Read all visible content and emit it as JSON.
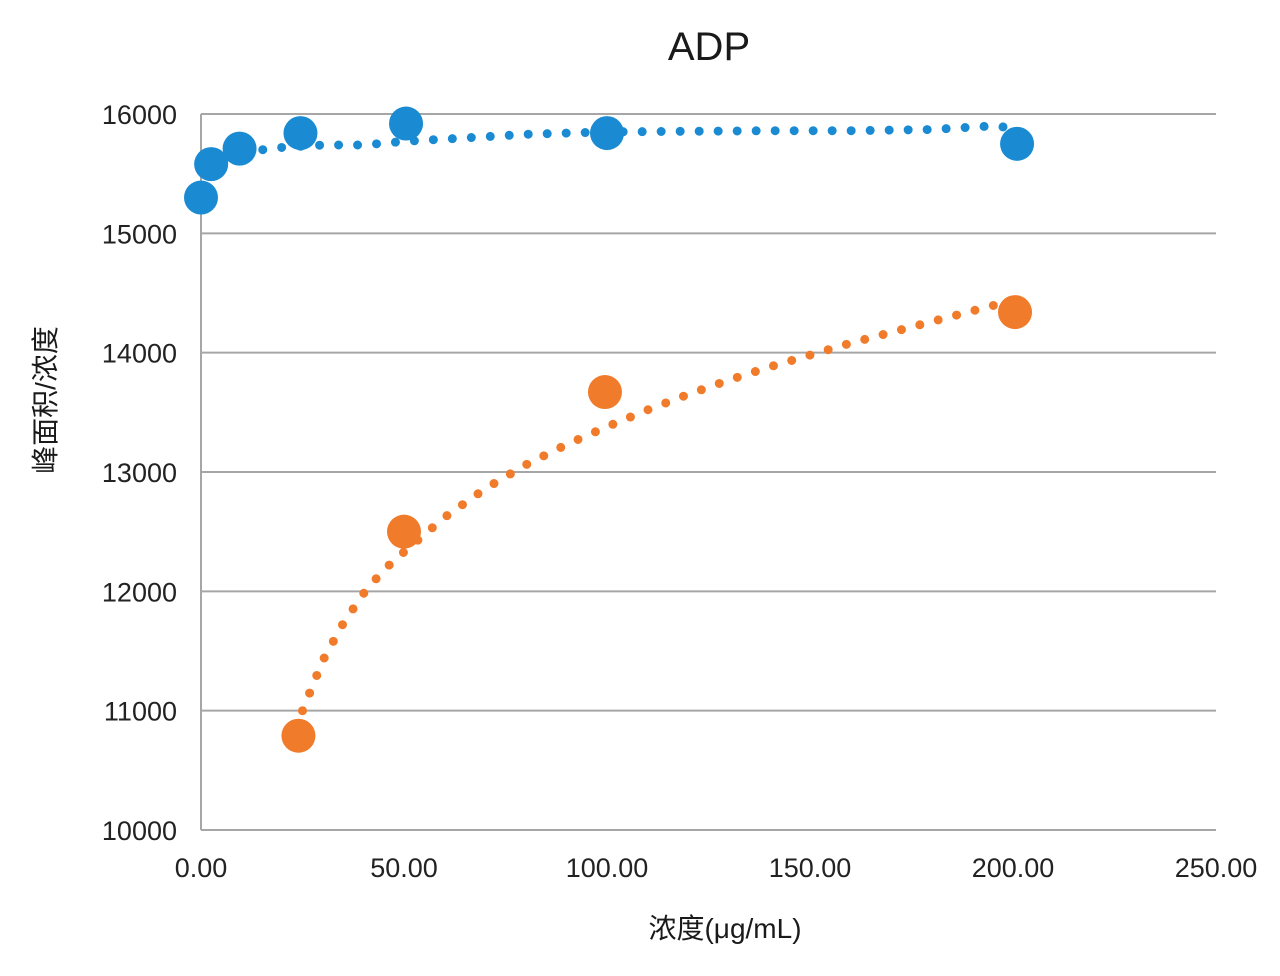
{
  "chart_data": {
    "type": "scatter",
    "title": "ADP",
    "xlabel": "浓度(μg/mL)",
    "ylabel": "峰面积/浓度",
    "xlim": [
      0,
      250
    ],
    "ylim": [
      10000,
      16000
    ],
    "x_ticks": [
      "0.00",
      "50.00",
      "100.00",
      "150.00",
      "200.00",
      "250.00"
    ],
    "y_ticks": [
      "10000",
      "11000",
      "12000",
      "13000",
      "14000",
      "15000",
      "16000"
    ],
    "grid": "horizontal",
    "legend": "none",
    "series": [
      {
        "color": "#1a8bd2",
        "trendline": "dotted",
        "points": [
          {
            "x": 0,
            "y": 15300
          },
          {
            "x": 2.5,
            "y": 15580
          },
          {
            "x": 9.5,
            "y": 15710
          },
          {
            "x": 24.5,
            "y": 15840
          },
          {
            "x": 50.5,
            "y": 15920
          },
          {
            "x": 100,
            "y": 15840
          },
          {
            "x": 201,
            "y": 15750
          }
        ],
        "trend": [
          {
            "x": 2,
            "y": 15560
          },
          {
            "x": 5,
            "y": 15620
          },
          {
            "x": 10,
            "y": 15680
          },
          {
            "x": 20,
            "y": 15720
          },
          {
            "x": 30,
            "y": 15740
          },
          {
            "x": 40,
            "y": 15740
          },
          {
            "x": 50,
            "y": 15770
          },
          {
            "x": 60,
            "y": 15790
          },
          {
            "x": 70,
            "y": 15810
          },
          {
            "x": 80,
            "y": 15830
          },
          {
            "x": 90,
            "y": 15840
          },
          {
            "x": 100,
            "y": 15850
          },
          {
            "x": 120,
            "y": 15855
          },
          {
            "x": 140,
            "y": 15860
          },
          {
            "x": 160,
            "y": 15860
          },
          {
            "x": 180,
            "y": 15870
          },
          {
            "x": 195,
            "y": 15900
          },
          {
            "x": 201,
            "y": 15880
          }
        ]
      },
      {
        "color": "#f07b2a",
        "trendline": "dotted",
        "points": [
          {
            "x": 24,
            "y": 10790
          },
          {
            "x": 50,
            "y": 12500
          },
          {
            "x": 99.5,
            "y": 13670
          },
          {
            "x": 200.5,
            "y": 14340
          }
        ],
        "trend": [
          {
            "x": 25,
            "y": 11000
          },
          {
            "x": 30,
            "y": 11420
          },
          {
            "x": 35,
            "y": 11730
          },
          {
            "x": 40,
            "y": 11980
          },
          {
            "x": 45,
            "y": 12180
          },
          {
            "x": 50,
            "y": 12330
          },
          {
            "x": 60,
            "y": 12620
          },
          {
            "x": 70,
            "y": 12860
          },
          {
            "x": 80,
            "y": 13060
          },
          {
            "x": 90,
            "y": 13230
          },
          {
            "x": 100,
            "y": 13380
          },
          {
            "x": 110,
            "y": 13520
          },
          {
            "x": 120,
            "y": 13650
          },
          {
            "x": 130,
            "y": 13770
          },
          {
            "x": 140,
            "y": 13880
          },
          {
            "x": 150,
            "y": 13980
          },
          {
            "x": 160,
            "y": 14080
          },
          {
            "x": 170,
            "y": 14170
          },
          {
            "x": 180,
            "y": 14260
          },
          {
            "x": 190,
            "y": 14350
          },
          {
            "x": 198,
            "y": 14420
          }
        ]
      }
    ]
  }
}
